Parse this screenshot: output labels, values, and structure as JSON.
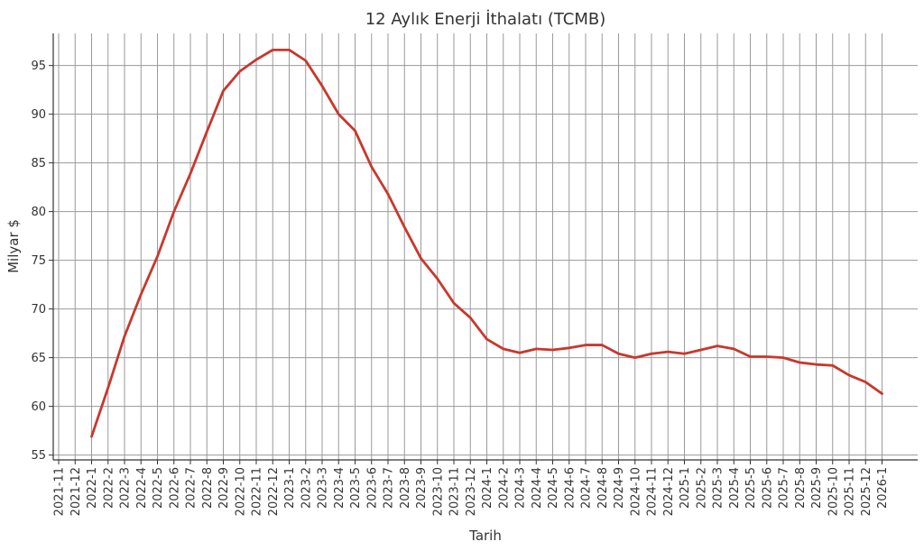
{
  "chart_data": {
    "type": "line",
    "title": "12 Aylık Enerji İthalatı (TCMB)",
    "xlabel": "Tarih",
    "ylabel": "Milyar $",
    "categories": [
      "2021-11",
      "2021-12",
      "2022-1",
      "2022-2",
      "2022-3",
      "2022-4",
      "2022-5",
      "2022-6",
      "2022-7",
      "2022-8",
      "2022-9",
      "2022-10",
      "2022-11",
      "2022-12",
      "2023-1",
      "2023-2",
      "2023-3",
      "2023-4",
      "2023-5",
      "2023-6",
      "2023-7",
      "2023-8",
      "2023-9",
      "2023-10",
      "2023-11",
      "2023-12",
      "2024-1",
      "2024-2",
      "2024-3",
      "2024-4",
      "2024-5",
      "2024-6",
      "2024-7",
      "2024-8",
      "2024-9",
      "2024-10",
      "2024-11",
      "2024-12",
      "2025-1",
      "2025-2",
      "2025-3",
      "2025-4",
      "2025-5",
      "2025-6",
      "2025-7",
      "2025-8",
      "2025-9",
      "2025-10",
      "2025-11",
      "2025-12",
      "2026-1"
    ],
    "series": [
      {
        "values": [
          null,
          null,
          56.9,
          61.9,
          67.2,
          71.5,
          75.4,
          80.0,
          83.9,
          88.2,
          92.4,
          94.4,
          95.6,
          96.6,
          96.6,
          95.5,
          92.9,
          90.0,
          88.3,
          84.6,
          81.8,
          78.4,
          75.2,
          73.1,
          70.6,
          69.1,
          66.9,
          65.9,
          65.5,
          65.9,
          65.8,
          66.0,
          66.3,
          66.3,
          65.4,
          65.0,
          65.4,
          65.6,
          65.4,
          65.8,
          66.2,
          65.9,
          65.1,
          65.1,
          65.0,
          64.5,
          64.3,
          64.2,
          63.2,
          62.5,
          61.3
        ],
        "color": "#c9372c"
      }
    ],
    "yticks": [
      55,
      60,
      65,
      70,
      75,
      80,
      85,
      90,
      95
    ],
    "ylim": [
      54.5,
      98.3
    ],
    "grid": true
  }
}
